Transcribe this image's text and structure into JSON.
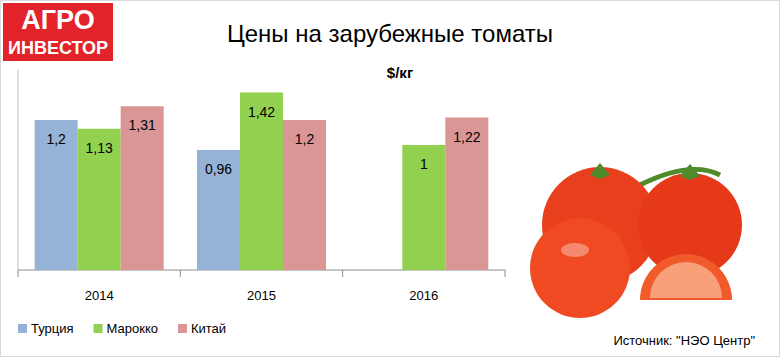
{
  "logo": [
    "АГРО",
    "ИНВЕСТОР"
  ],
  "chart_data": {
    "type": "bar",
    "title": "Цены на зарубежные томаты",
    "subtitle": "$/кг",
    "categories": [
      "2014",
      "2015",
      "2016"
    ],
    "series": [
      {
        "name": "Турция",
        "color": "#95b3d7",
        "values": [
          1.2,
          0.96,
          null
        ],
        "value_labels": [
          "1,2",
          "0,96",
          null
        ]
      },
      {
        "name": "Марокко",
        "color": "#92d050",
        "values": [
          1.13,
          1.42,
          1
        ],
        "value_labels": [
          "1,13",
          "1,42",
          "1"
        ]
      },
      {
        "name": "Китай",
        "color": "#d99694",
        "values": [
          1.31,
          1.2,
          1.22
        ],
        "value_labels": [
          "1,31",
          "1,2",
          "1,22"
        ]
      }
    ],
    "ylim": [
      0,
      1.6
    ],
    "grid": false,
    "legend": "bottom-left",
    "data_labels": true,
    "tick_labels": "x",
    "annotations": [
      "Источник: \"НЭО Центр\""
    ]
  }
}
